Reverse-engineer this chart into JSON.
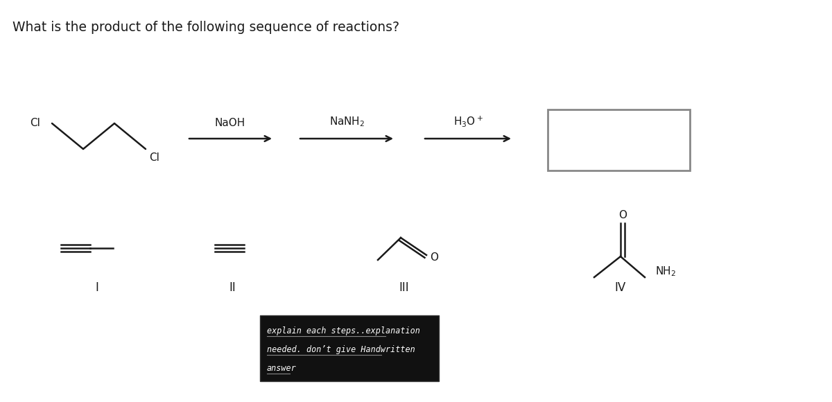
{
  "title": "What is the product of the following sequence of reactions?",
  "title_fontsize": 13.5,
  "bg_color": "#ffffff",
  "tc": "#1a1a1a",
  "lw": 1.8,
  "arrow_color": "#1a1a1a",
  "box_edge_color": "#888888",
  "note_text_line1": "explain each steps..explanation",
  "note_text_line2": "needed. don’t give Handwritten",
  "note_text_line3": "answer",
  "note_bg": "#111111",
  "note_text_color": "#ffffff",
  "roman_I": "I",
  "roman_II": "II",
  "roman_III": "III",
  "roman_IV": "IV",
  "reagent1": "NaOH",
  "reagent2": "NaNH$_2$",
  "reagent3": "H$_3$O$^+$"
}
